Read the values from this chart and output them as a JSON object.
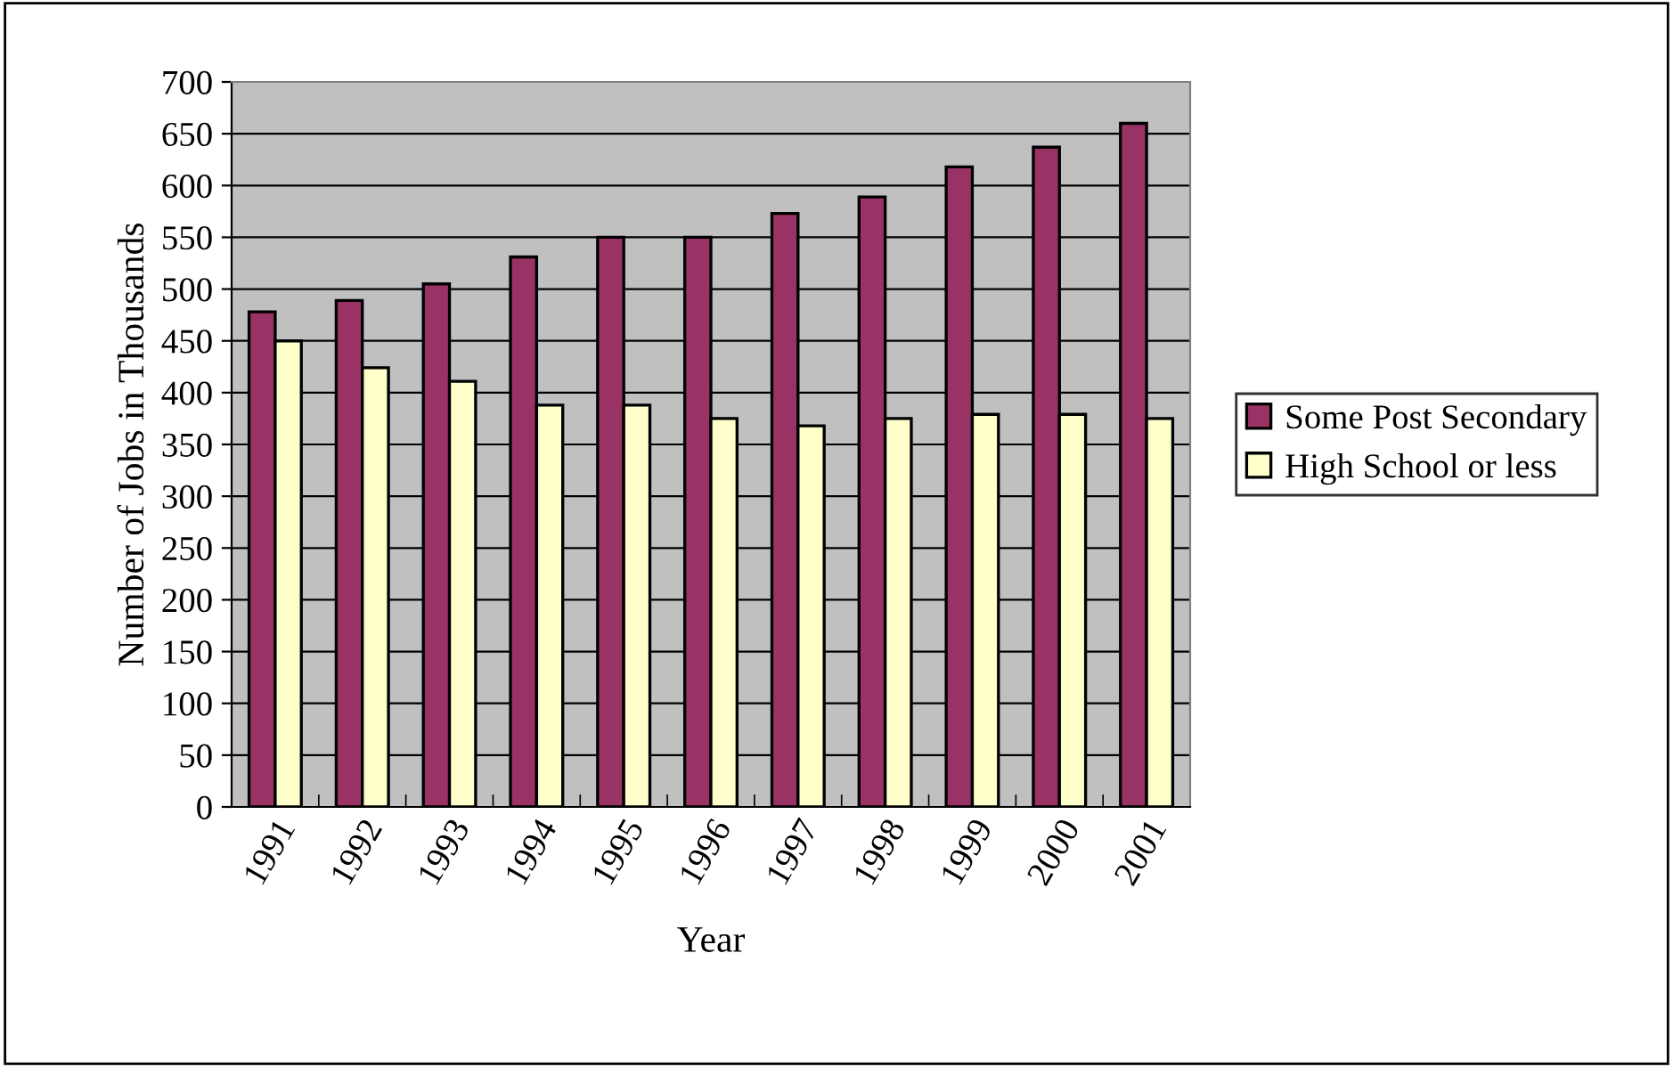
{
  "chart_data": {
    "type": "bar",
    "xlabel": "Year",
    "ylabel": "Number of Jobs in Thousands",
    "categories": [
      "1991",
      "1992",
      "1993",
      "1994",
      "1995",
      "1996",
      "1997",
      "1998",
      "1999",
      "2000",
      "2001"
    ],
    "series": [
      {
        "name": "Some Post Secondary",
        "color": "#993366",
        "values": [
          478,
          489,
          505,
          531,
          550,
          550,
          573,
          589,
          618,
          637,
          660
        ]
      },
      {
        "name": "High School or less",
        "color": "#ffffcc",
        "values": [
          450,
          424,
          411,
          388,
          388,
          375,
          368,
          375,
          379,
          379,
          375
        ]
      }
    ],
    "ylim": [
      0,
      700
    ],
    "yticks": [
      0,
      50,
      100,
      150,
      200,
      250,
      300,
      350,
      400,
      450,
      500,
      550,
      600,
      650,
      700
    ],
    "grid": "y",
    "legend": "right"
  }
}
